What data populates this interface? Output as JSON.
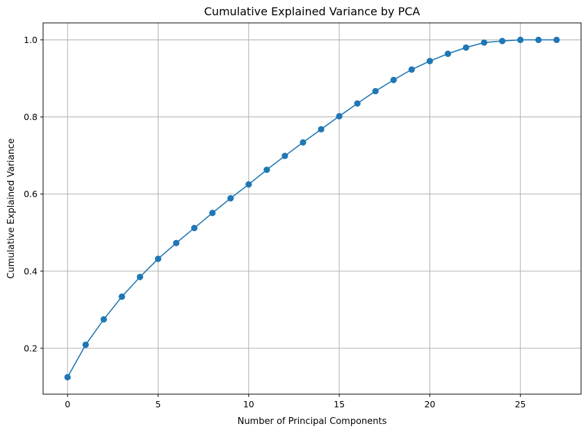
{
  "chart_data": {
    "type": "line",
    "title": "Cumulative Explained Variance by PCA",
    "xlabel": "Number of Principal Components",
    "ylabel": "Cumulative Explained Variance",
    "xlim": [
      -1.35,
      28.35
    ],
    "ylim": [
      0.081,
      1.044
    ],
    "xticks": [
      0,
      5,
      10,
      15,
      20,
      25
    ],
    "yticks": [
      0.2,
      0.4,
      0.6,
      0.8,
      1.0
    ],
    "ytick_labels": [
      "0.2",
      "0.4",
      "0.6",
      "0.8",
      "1.0"
    ],
    "grid": true,
    "legend": "none",
    "series": [
      {
        "color": "#1f77b4",
        "marker": "circle",
        "x": [
          0,
          1,
          2,
          3,
          4,
          5,
          6,
          7,
          8,
          9,
          10,
          11,
          12,
          13,
          14,
          15,
          16,
          17,
          18,
          19,
          20,
          21,
          22,
          23,
          24,
          25,
          26,
          27
        ],
        "y": [
          0.125,
          0.209,
          0.275,
          0.334,
          0.385,
          0.432,
          0.473,
          0.512,
          0.551,
          0.589,
          0.625,
          0.663,
          0.699,
          0.734,
          0.768,
          0.802,
          0.835,
          0.867,
          0.896,
          0.923,
          0.945,
          0.964,
          0.98,
          0.993,
          0.997,
          1.0,
          1.0,
          1.0
        ]
      }
    ]
  }
}
